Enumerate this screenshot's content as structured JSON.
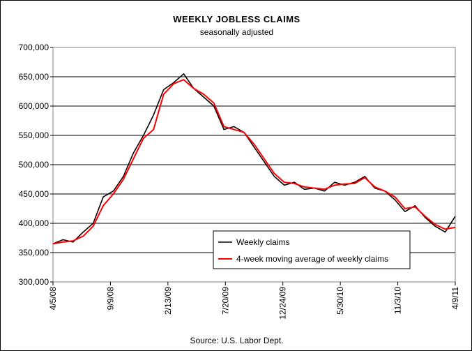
{
  "chart_data": {
    "type": "line",
    "title": "WEEKLY JOBLESS CLAIMS",
    "subtitle": "seasonally adjusted",
    "source": "Source: U.S. Labor Dept.",
    "xlabel": "",
    "ylabel": "",
    "ylim": [
      300000,
      700000
    ],
    "yticks": [
      300000,
      350000,
      400000,
      450000,
      500000,
      550000,
      600000,
      650000,
      700000
    ],
    "ytick_labels": [
      "300,000",
      "350,000",
      "400,000",
      "450,000",
      "500,000",
      "550,000",
      "600,000",
      "650,000",
      "700,000"
    ],
    "xtick_labels": [
      "4/5/08",
      "9/9/08",
      "2/13/09",
      "7/20/09",
      "12/24/09",
      "5/30/10",
      "11/3/10",
      "4/9/11"
    ],
    "grid": "horizontal",
    "legend_position": "bottom-right",
    "x": [
      "4/5/08",
      "5/3/08",
      "5/31/08",
      "6/28/08",
      "7/26/08",
      "8/23/08",
      "9/20/08",
      "10/18/08",
      "11/15/08",
      "12/13/08",
      "1/10/09",
      "2/7/09",
      "3/7/09",
      "4/4/09",
      "5/2/09",
      "5/30/09",
      "6/27/09",
      "7/25/09",
      "8/22/09",
      "9/19/09",
      "10/17/09",
      "11/14/09",
      "12/12/09",
      "1/9/10",
      "2/6/10",
      "3/6/10",
      "4/3/10",
      "5/1/10",
      "5/29/10",
      "6/26/10",
      "7/24/10",
      "8/21/10",
      "9/18/10",
      "10/16/10",
      "11/13/10",
      "12/11/10",
      "1/8/11",
      "2/5/11",
      "3/5/11",
      "4/2/11",
      "4/9/11"
    ],
    "series": [
      {
        "name": "Weekly claims",
        "color": "#000000",
        "values": [
          365000,
          372000,
          368000,
          385000,
          400000,
          445000,
          455000,
          480000,
          520000,
          550000,
          585000,
          628000,
          640000,
          655000,
          630000,
          615000,
          600000,
          560000,
          565000,
          555000,
          530000,
          505000,
          480000,
          465000,
          470000,
          458000,
          460000,
          455000,
          470000,
          465000,
          470000,
          480000,
          460000,
          455000,
          440000,
          420000,
          430000,
          410000,
          395000,
          385000,
          412000
        ]
      },
      {
        "name": "4-week moving average of weekly claims",
        "color": "#ff0000",
        "values": [
          365000,
          368000,
          370000,
          378000,
          395000,
          430000,
          450000,
          475000,
          510000,
          545000,
          560000,
          620000,
          638000,
          645000,
          630000,
          620000,
          605000,
          565000,
          560000,
          555000,
          535000,
          510000,
          485000,
          470000,
          468000,
          462000,
          460000,
          458000,
          465000,
          467000,
          468000,
          478000,
          462000,
          455000,
          445000,
          425000,
          428000,
          412000,
          398000,
          390000,
          393000
        ]
      }
    ]
  }
}
